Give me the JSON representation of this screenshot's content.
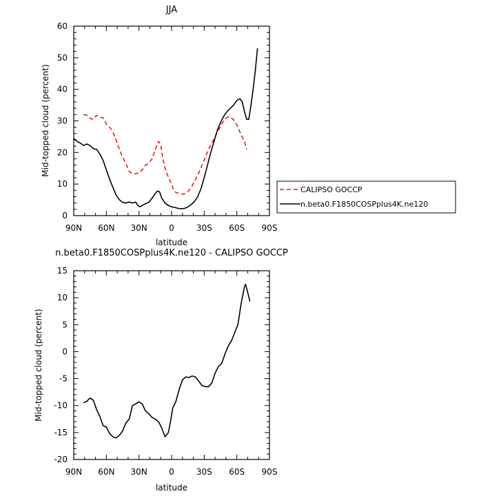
{
  "chart_data": [
    {
      "type": "line",
      "title": "JJA",
      "xlabel": "latitude",
      "ylabel": "Mid-topped cloud (percent)",
      "xlim": [
        90,
        -90
      ],
      "ylim": [
        0,
        60
      ],
      "x_ticks": [
        90,
        60,
        30,
        0,
        -30,
        -60,
        -90
      ],
      "x_tick_labels": [
        "90N",
        "60N",
        "30N",
        "0",
        "30S",
        "60S",
        "90S"
      ],
      "y_ticks": [
        0,
        10,
        20,
        30,
        40,
        50,
        60
      ],
      "y_tick_labels": [
        "0",
        "10",
        "20",
        "30",
        "40",
        "50",
        "60"
      ],
      "legend_position": "right",
      "series": [
        {
          "name": "CALIPSO GOCCP",
          "color": "#e41a1c",
          "dash": "dashed",
          "points": [
            [
              81,
              32
            ],
            [
              78,
              31.8
            ],
            [
              75,
              30.8
            ],
            [
              72,
              30.5
            ],
            [
              69,
              31.8
            ],
            [
              66,
              31.2
            ],
            [
              63,
              31
            ],
            [
              60,
              29
            ],
            [
              57,
              28
            ],
            [
              54,
              26.5
            ],
            [
              51,
              24
            ],
            [
              48,
              21
            ],
            [
              45,
              18.5
            ],
            [
              42,
              16.5
            ],
            [
              39,
              14
            ],
            [
              36,
              13.2
            ],
            [
              33,
              13.3
            ],
            [
              30,
              13.5
            ],
            [
              27,
              14.5
            ],
            [
              24,
              16
            ],
            [
              21,
              16.5
            ],
            [
              18,
              18
            ],
            [
              15,
              21
            ],
            [
              12,
              23.5
            ],
            [
              10,
              22.5
            ],
            [
              8,
              18
            ],
            [
              6,
              15
            ],
            [
              4,
              13
            ],
            [
              2,
              11.5
            ],
            [
              0,
              10
            ],
            [
              -2,
              8
            ],
            [
              -4,
              7.3
            ],
            [
              -7,
              7
            ],
            [
              -10,
              6.8
            ],
            [
              -13,
              7
            ],
            [
              -16,
              8
            ],
            [
              -19,
              9.5
            ],
            [
              -22,
              11.5
            ],
            [
              -25,
              13.5
            ],
            [
              -28,
              16
            ],
            [
              -31,
              18.5
            ],
            [
              -34,
              21
            ],
            [
              -37,
              23
            ],
            [
              -40,
              25
            ],
            [
              -43,
              27
            ],
            [
              -46,
              29
            ],
            [
              -49,
              30.5
            ],
            [
              -52,
              31.3
            ],
            [
              -55,
              31
            ],
            [
              -58,
              30
            ],
            [
              -61,
              28
            ],
            [
              -64,
              25.5
            ],
            [
              -67,
              23.5
            ],
            [
              -69,
              21
            ]
          ]
        },
        {
          "name": "n.beta0.F1850COSPplus4K.ne120",
          "color": "#000000",
          "dash": "solid",
          "points": [
            [
              90,
              24.5
            ],
            [
              87,
              23.5
            ],
            [
              84,
              23
            ],
            [
              81,
              22.2
            ],
            [
              78,
              22.7
            ],
            [
              75,
              22.2
            ],
            [
              72,
              21.2
            ],
            [
              69,
              21
            ],
            [
              66,
              19.5
            ],
            [
              63,
              17.5
            ],
            [
              60,
              14.5
            ],
            [
              57,
              11.5
            ],
            [
              54,
              9
            ],
            [
              51,
              6.5
            ],
            [
              48,
              5
            ],
            [
              45,
              4.2
            ],
            [
              42,
              4
            ],
            [
              39,
              4.3
            ],
            [
              36,
              4
            ],
            [
              33,
              4.3
            ],
            [
              31,
              3.2
            ],
            [
              29,
              2.8
            ],
            [
              27,
              3.2
            ],
            [
              24,
              3.8
            ],
            [
              21,
              4.2
            ],
            [
              18,
              5.5
            ],
            [
              15,
              7
            ],
            [
              13,
              7.8
            ],
            [
              11,
              7.5
            ],
            [
              9,
              5.5
            ],
            [
              6,
              4
            ],
            [
              3,
              3.2
            ],
            [
              0,
              2.8
            ],
            [
              -3,
              2.6
            ],
            [
              -6,
              2.3
            ],
            [
              -9,
              2.2
            ],
            [
              -12,
              2.3
            ],
            [
              -15,
              2.8
            ],
            [
              -18,
              3.5
            ],
            [
              -21,
              4.5
            ],
            [
              -24,
              6
            ],
            [
              -27,
              8.5
            ],
            [
              -30,
              12
            ],
            [
              -33,
              16
            ],
            [
              -36,
              20
            ],
            [
              -39,
              23.5
            ],
            [
              -42,
              27
            ],
            [
              -45,
              29.5
            ],
            [
              -48,
              31.5
            ],
            [
              -51,
              33
            ],
            [
              -54,
              34
            ],
            [
              -57,
              35
            ],
            [
              -60,
              36.5
            ],
            [
              -63,
              37
            ],
            [
              -65,
              36
            ],
            [
              -67,
              33
            ],
            [
              -69,
              30.5
            ],
            [
              -71,
              30.5
            ],
            [
              -73,
              35
            ],
            [
              -75,
              40
            ],
            [
              -77,
              46
            ],
            [
              -79,
              53
            ]
          ]
        }
      ]
    },
    {
      "type": "line",
      "title": "n.beta0.F1850COSPplus4K.ne120 - CALIPSO GOCCP",
      "xlabel": "latitude",
      "ylabel": "Mid-topped cloud (percent)",
      "xlim": [
        90,
        -90
      ],
      "ylim": [
        -20,
        15
      ],
      "x_ticks": [
        90,
        60,
        30,
        0,
        -30,
        -60,
        -90
      ],
      "x_tick_labels": [
        "90N",
        "60N",
        "30N",
        "0",
        "30S",
        "60S",
        "90S"
      ],
      "y_ticks": [
        -20,
        -15,
        -10,
        -5,
        0,
        5,
        10,
        15
      ],
      "y_tick_labels": [
        "-20",
        "-15",
        "-10",
        "-5",
        "0",
        "5",
        "10",
        "15"
      ],
      "series": [
        {
          "name": "",
          "color": "#000000",
          "dash": "solid",
          "points": [
            [
              81,
              -9.5
            ],
            [
              78,
              -9.2
            ],
            [
              75,
              -8.6
            ],
            [
              72,
              -9
            ],
            [
              69,
              -10.7
            ],
            [
              66,
              -12
            ],
            [
              63,
              -13.7
            ],
            [
              60,
              -14
            ],
            [
              57,
              -15.2
            ],
            [
              54,
              -15.8
            ],
            [
              51,
              -16
            ],
            [
              48,
              -15.5
            ],
            [
              45,
              -14.7
            ],
            [
              42,
              -13.2
            ],
            [
              39,
              -12.5
            ],
            [
              36,
              -10
            ],
            [
              33,
              -9.7
            ],
            [
              30,
              -9.3
            ],
            [
              27,
              -9.7
            ],
            [
              24,
              -11
            ],
            [
              21,
              -11.5
            ],
            [
              18,
              -12.2
            ],
            [
              15,
              -12.5
            ],
            [
              12,
              -13
            ],
            [
              9,
              -14.2
            ],
            [
              6,
              -15.8
            ],
            [
              3,
              -15
            ],
            [
              1,
              -13
            ],
            [
              -1,
              -10.5
            ],
            [
              -4,
              -9.2
            ],
            [
              -7,
              -7
            ],
            [
              -10,
              -5.2
            ],
            [
              -13,
              -4.7
            ],
            [
              -16,
              -4.8
            ],
            [
              -19,
              -4.5
            ],
            [
              -22,
              -4.7
            ],
            [
              -25,
              -5.5
            ],
            [
              -28,
              -6.3
            ],
            [
              -31,
              -6.5
            ],
            [
              -34,
              -6.5
            ],
            [
              -37,
              -5.8
            ],
            [
              -40,
              -4
            ],
            [
              -43,
              -2.8
            ],
            [
              -46,
              -2.2
            ],
            [
              -49,
              -0.5
            ],
            [
              -52,
              1
            ],
            [
              -55,
              2
            ],
            [
              -58,
              3.5
            ],
            [
              -61,
              5
            ],
            [
              -64,
              9
            ],
            [
              -67,
              12
            ],
            [
              -68,
              12.5
            ],
            [
              -70,
              11
            ],
            [
              -72,
              9.3
            ]
          ]
        }
      ]
    }
  ]
}
